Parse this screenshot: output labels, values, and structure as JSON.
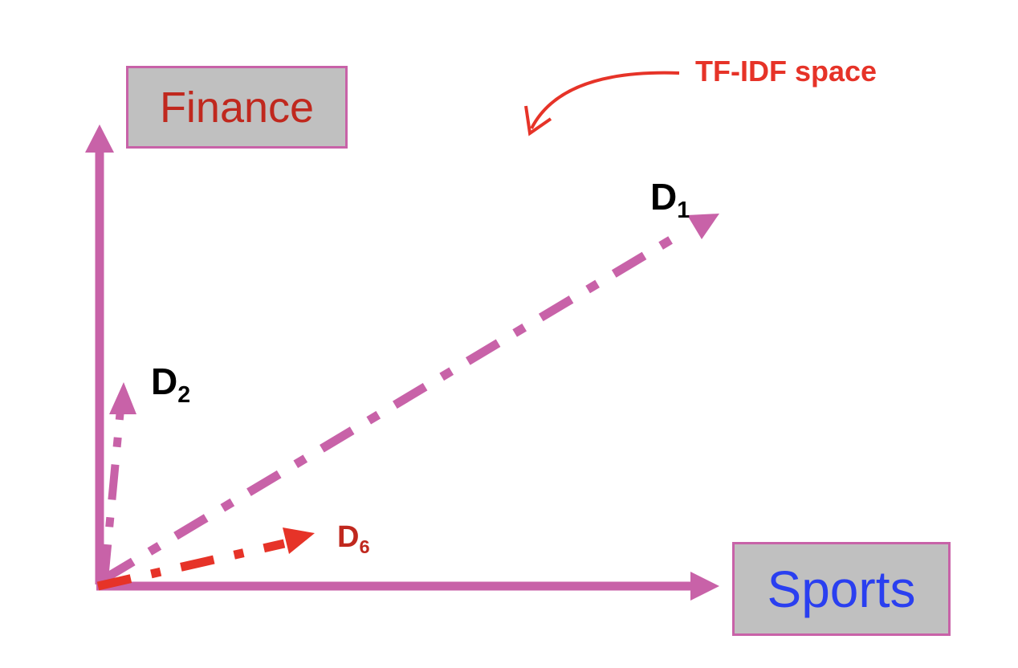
{
  "axes": {
    "y_label": "Finance",
    "x_label": "Sports"
  },
  "vectors": [
    {
      "id": "d1",
      "label": "D",
      "subscript": "1",
      "color": "#c862a8"
    },
    {
      "id": "d2",
      "label": "D",
      "subscript": "2",
      "color": "#c862a8"
    },
    {
      "id": "d6",
      "label": "D",
      "subscript": "6",
      "color": "#e63328"
    }
  ],
  "annotation": {
    "text": "TF-IDF space"
  },
  "colors": {
    "axis": "#c862a8",
    "finance_text": "#c0281e",
    "sports_text": "#2a3ff0",
    "label_black": "#000000",
    "d6_label": "#c0281e",
    "annotation": "#e63328",
    "box_fill": "#c0c0c0"
  }
}
